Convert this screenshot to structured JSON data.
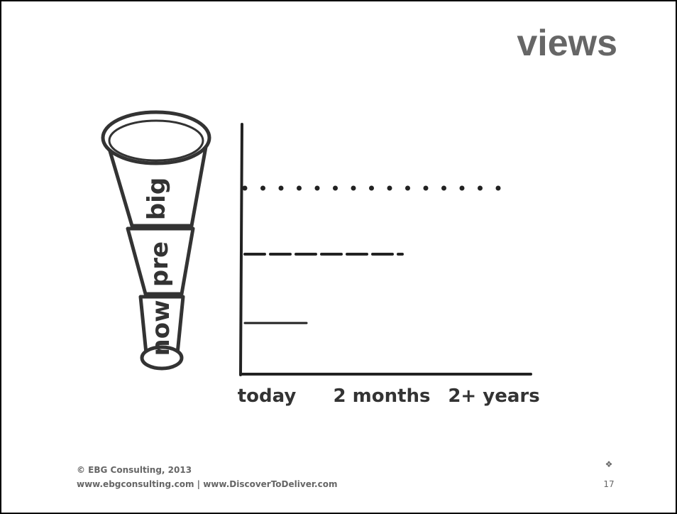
{
  "title": "views",
  "telescope": {
    "labels": [
      "big",
      "pre",
      "now"
    ]
  },
  "timeline": {
    "labels": [
      "today",
      "2 months",
      "2+ years"
    ]
  },
  "footer": {
    "copyright": "© EBG Consulting, 2013",
    "links": "www.ebgconsulting.com | www.DiscoverToDeliver.com",
    "ornament": "❖",
    "page_number": "17"
  }
}
